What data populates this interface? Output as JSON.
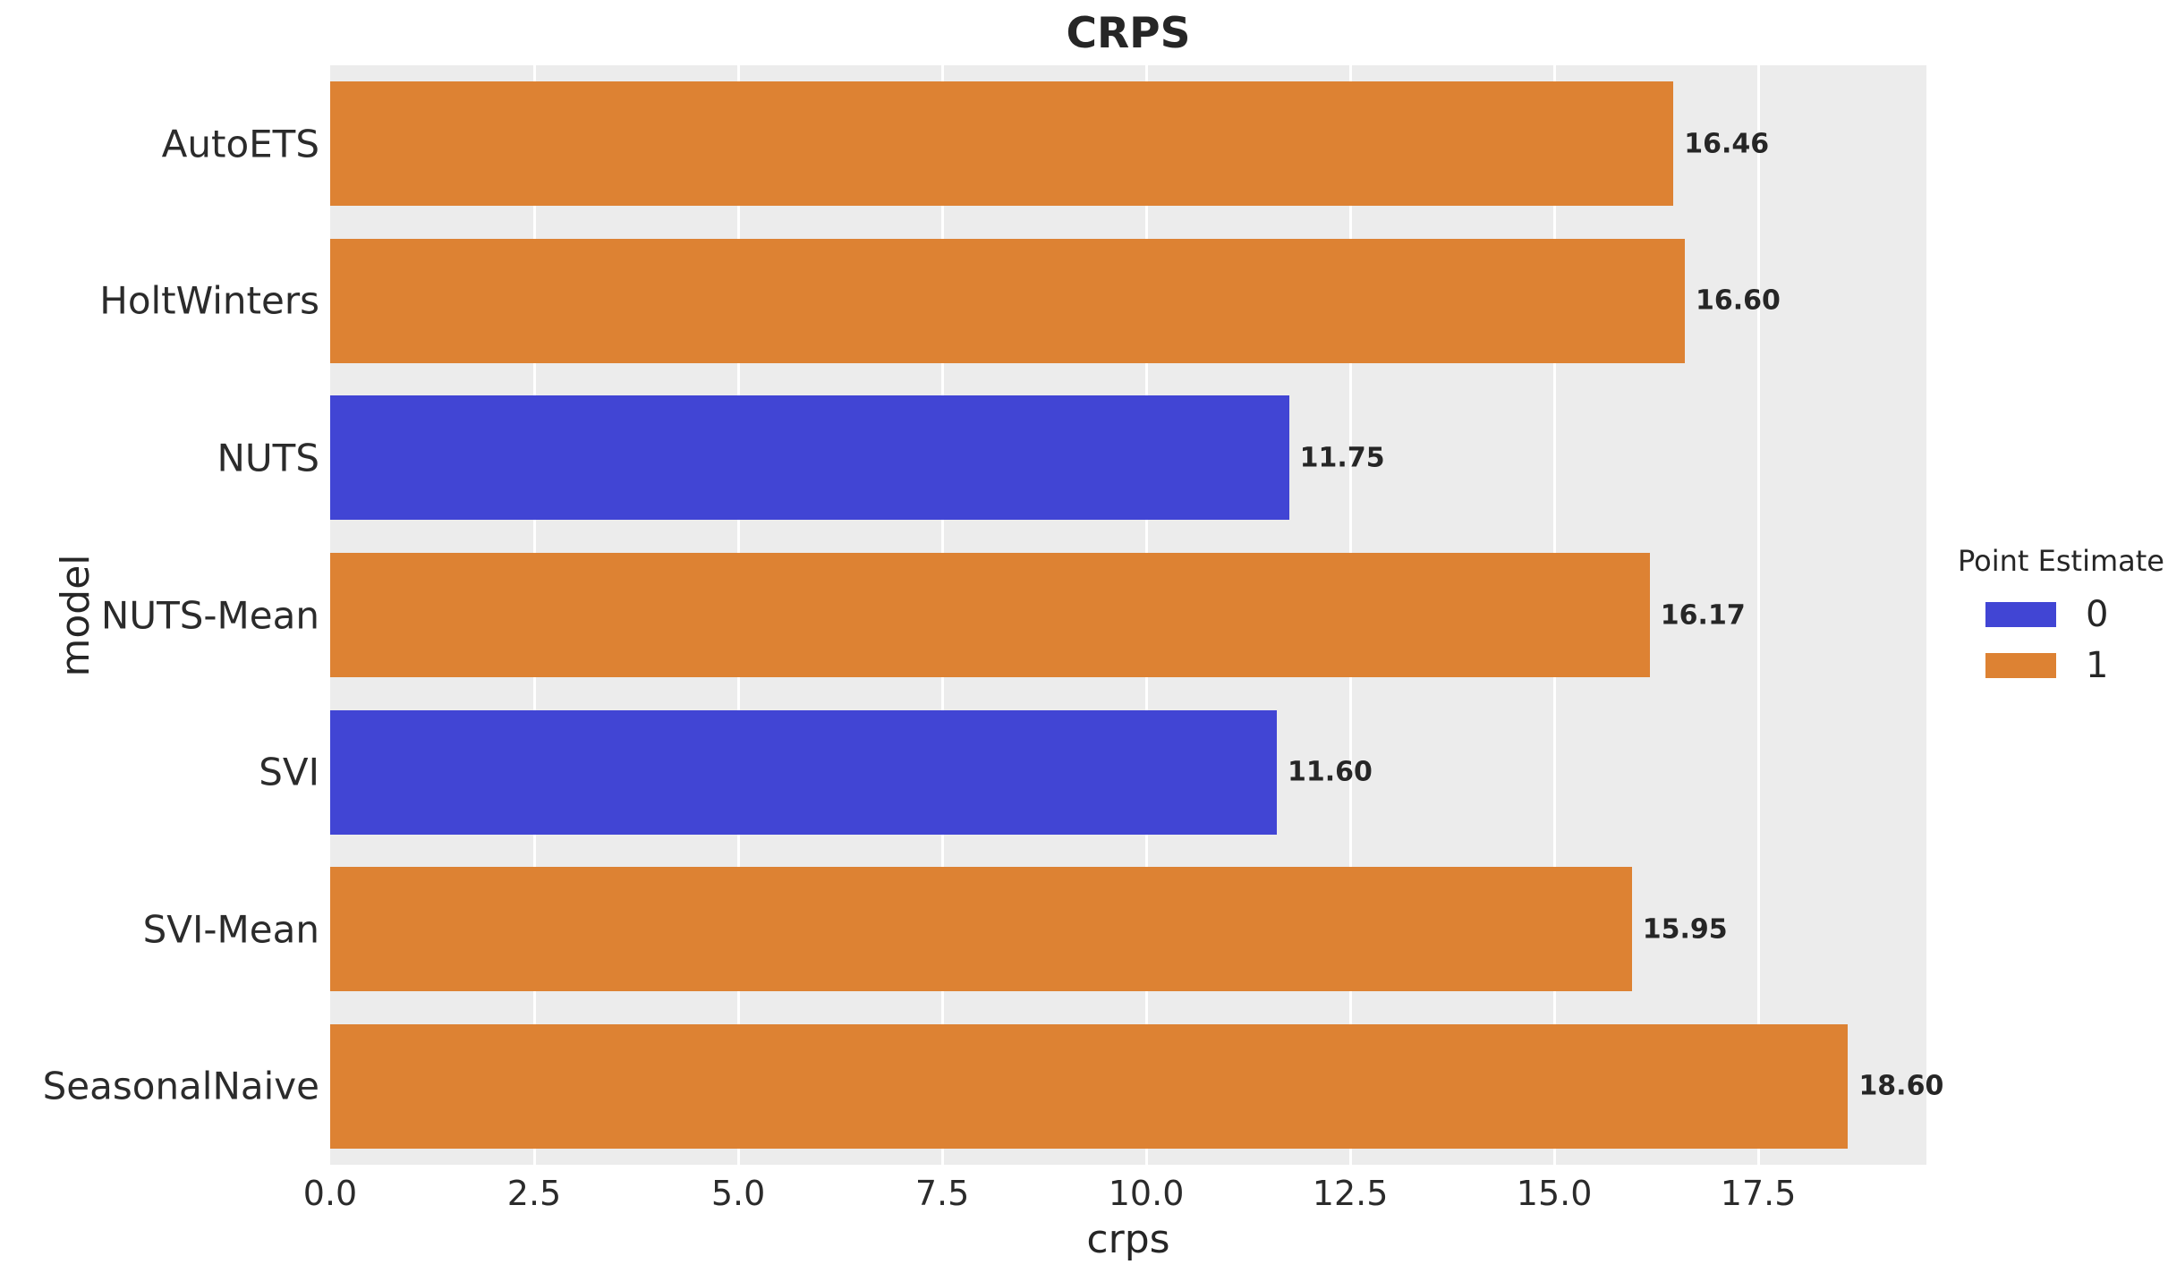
{
  "figure": {
    "title": "CRPS",
    "xlabel": "crps",
    "ylabel": "model",
    "colors": {
      "blue": "#4145d4",
      "orange": "#dd8233",
      "plot_bg": "#ececec",
      "grid": "#ffffff",
      "text": "#262626"
    },
    "legend": {
      "title": "Point Estimate",
      "entries": [
        {
          "label": "0",
          "color_key": "blue"
        },
        {
          "label": "1",
          "color_key": "orange"
        }
      ]
    }
  },
  "chart_data": {
    "type": "bar",
    "orientation": "horizontal",
    "title": "CRPS",
    "xlabel": "crps",
    "ylabel": "model",
    "categories": [
      "AutoETS",
      "HoltWinters",
      "NUTS",
      "NUTS-Mean",
      "SVI",
      "SVI-Mean",
      "SeasonalNaive"
    ],
    "values": [
      16.46,
      16.6,
      11.75,
      16.17,
      11.6,
      15.95,
      18.6
    ],
    "value_labels": [
      "16.46",
      "16.60",
      "11.75",
      "16.17",
      "11.60",
      "15.95",
      "18.60"
    ],
    "point_estimate_group": [
      1,
      1,
      0,
      1,
      0,
      1,
      1
    ],
    "xlim": [
      0,
      19.56
    ],
    "xticks": [
      0.0,
      2.5,
      5.0,
      7.5,
      10.0,
      12.5,
      15.0,
      17.5
    ],
    "xtick_labels": [
      "0.0",
      "2.5",
      "5.0",
      "7.5",
      "10.0",
      "12.5",
      "15.0",
      "17.5"
    ],
    "grid": true,
    "legend_position": "right-outside"
  }
}
